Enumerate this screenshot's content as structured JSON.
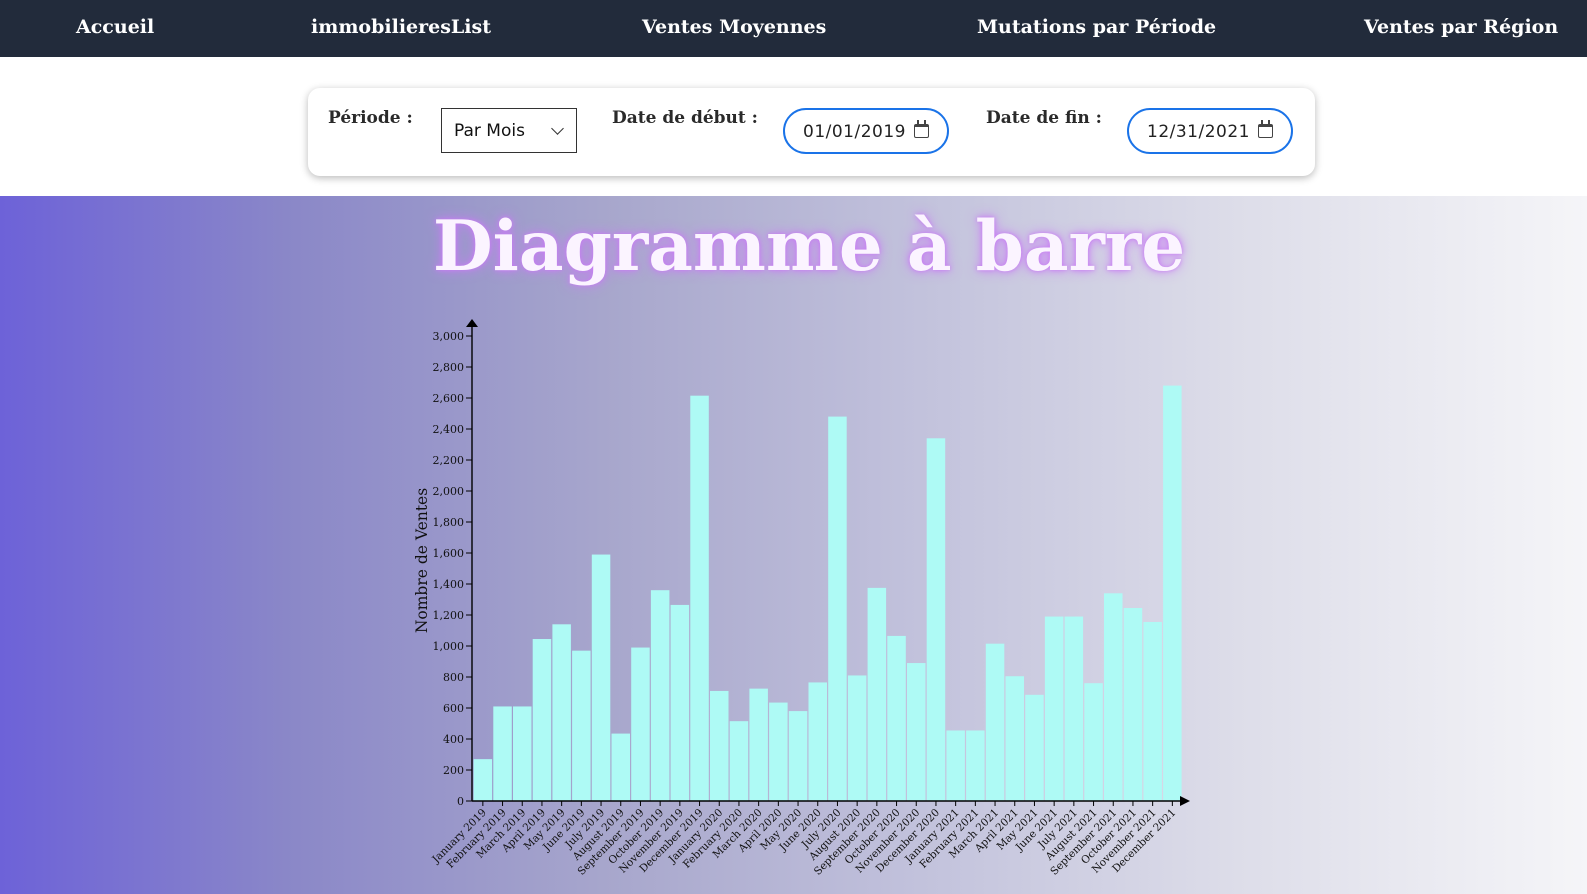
{
  "nav": {
    "items": [
      {
        "label": "Accueil"
      },
      {
        "label": "immobilieresList"
      },
      {
        "label": "Ventes Moyennes"
      },
      {
        "label": "Mutations par Période"
      },
      {
        "label": "Ventes par Région"
      }
    ]
  },
  "filters": {
    "period_label": "Période :",
    "period_value": "Par Mois",
    "start_label": "Date de début :",
    "start_value": "01/01/2019",
    "end_label": "Date de fin :",
    "end_value": "12/31/2021"
  },
  "colors": {
    "navbar": "#222b3b",
    "bar_fill": "#aefaf5",
    "input_border": "#1a73e8",
    "title_glow": "#c97cf5"
  },
  "icons": [
    "chevron-down-icon",
    "calendar-icon"
  ],
  "chart_data": {
    "type": "bar",
    "title": "Diagramme à barre",
    "xlabel": "",
    "ylabel": "Nombre de Ventes",
    "ylim": [
      0,
      3000
    ],
    "yticks": [
      0,
      200,
      400,
      600,
      800,
      1000,
      1200,
      1400,
      1600,
      1800,
      2000,
      2200,
      2400,
      2600,
      2800,
      3000
    ],
    "grid": false,
    "categories": [
      "January 2019",
      "February 2019",
      "March 2019",
      "April 2019",
      "May 2019",
      "June 2019",
      "July 2019",
      "August 2019",
      "September 2019",
      "October 2019",
      "November 2019",
      "December 2019",
      "January 2020",
      "February 2020",
      "March 2020",
      "April 2020",
      "May 2020",
      "June 2020",
      "July 2020",
      "August 2020",
      "September 2020",
      "October 2020",
      "November 2020",
      "December 2020",
      "January 2021",
      "February 2021",
      "March 2021",
      "April 2021",
      "May 2021",
      "June 2021",
      "July 2021",
      "August 2021",
      "September 2021",
      "October 2021",
      "November 2021",
      "December 2021"
    ],
    "values": [
      270,
      610,
      610,
      1045,
      1140,
      970,
      1590,
      435,
      990,
      1360,
      1265,
      2615,
      710,
      515,
      725,
      635,
      580,
      765,
      2480,
      810,
      1375,
      1065,
      890,
      2340,
      455,
      455,
      1015,
      805,
      685,
      1190,
      1190,
      760,
      1340,
      1245,
      1155,
      2680
    ]
  }
}
